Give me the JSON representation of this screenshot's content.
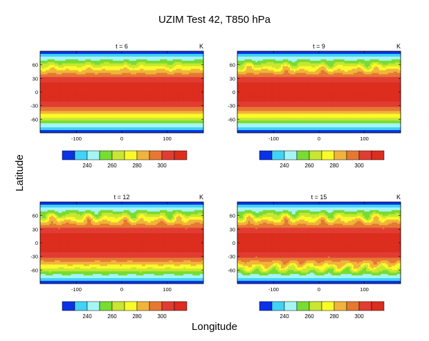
{
  "figure": {
    "title": "UZIM Test 42, T850 hPa",
    "xlabel": "Longitude",
    "ylabel": "Latitude"
  },
  "colorbar": {
    "colors": [
      "#0a32e6",
      "#41d2f5",
      "#a5f5f5",
      "#78dc32",
      "#c8e632",
      "#fafa28",
      "#f0b43c",
      "#e67832",
      "#e13c32",
      "#dc2d1e"
    ],
    "tick_labels": [
      "240",
      "260",
      "280",
      "300"
    ]
  },
  "chart_data": [
    {
      "type": "heatmap",
      "title": "t = 6",
      "unit": "K",
      "x_ticks": [
        "-100",
        "0",
        "100"
      ],
      "y_ticks": [
        "60",
        "30",
        "0",
        "-30",
        "-60"
      ],
      "xlim": [
        -180,
        180
      ],
      "ylim": [
        -90,
        90
      ],
      "zlim": [
        225,
        310
      ],
      "wave_amplitude_north": 0.4,
      "wave_amplitude_south": 0.0
    },
    {
      "type": "heatmap",
      "title": "t = 9",
      "unit": "K",
      "x_ticks": [
        "-100",
        "0",
        "100"
      ],
      "y_ticks": [
        "60",
        "30",
        "0",
        "-30",
        "-60"
      ],
      "xlim": [
        -180,
        180
      ],
      "ylim": [
        -90,
        90
      ],
      "zlim": [
        225,
        310
      ],
      "wave_amplitude_north": 0.8,
      "wave_amplitude_south": 0.0
    },
    {
      "type": "heatmap",
      "title": "t = 12",
      "unit": "K",
      "x_ticks": [
        "-100",
        "0",
        "100"
      ],
      "y_ticks": [
        "60",
        "30",
        "0",
        "-30",
        "-60"
      ],
      "xlim": [
        -180,
        180
      ],
      "ylim": [
        -90,
        90
      ],
      "zlim": [
        225,
        310
      ],
      "wave_amplitude_north": 1.0,
      "wave_amplitude_south": 0.2
    },
    {
      "type": "heatmap",
      "title": "t = 15",
      "unit": "K",
      "x_ticks": [
        "-100",
        "0",
        "100"
      ],
      "y_ticks": [
        "60",
        "30",
        "0",
        "-30",
        "-60"
      ],
      "xlim": [
        -180,
        180
      ],
      "ylim": [
        -90,
        90
      ],
      "zlim": [
        225,
        310
      ],
      "wave_amplitude_north": 1.0,
      "wave_amplitude_south": 1.0
    }
  ]
}
